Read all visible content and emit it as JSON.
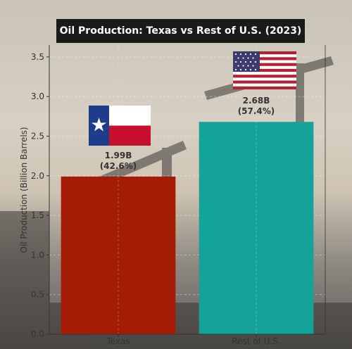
{
  "chart_data": {
    "type": "bar",
    "title": "Oil Production: Texas vs Rest of U.S. (2023)",
    "xlabel": "",
    "ylabel": "Oil Production (Billion Barrels)",
    "categories": [
      "Texas",
      "Rest of U.S."
    ],
    "values": [
      1.99,
      2.68
    ],
    "data_labels": [
      "1.99B\n(42.6%)",
      "2.68B\n(57.4%)"
    ],
    "ylim": [
      0,
      3.65
    ],
    "yticks": [
      "0.0",
      "0.5",
      "1.0",
      "1.5",
      "2.0",
      "2.5",
      "3.0",
      "3.5"
    ],
    "colors": [
      "#a51c05",
      "#13a39a"
    ],
    "grid": true,
    "icons": [
      "texas-flag-icon",
      "us-flag-icon"
    ]
  }
}
